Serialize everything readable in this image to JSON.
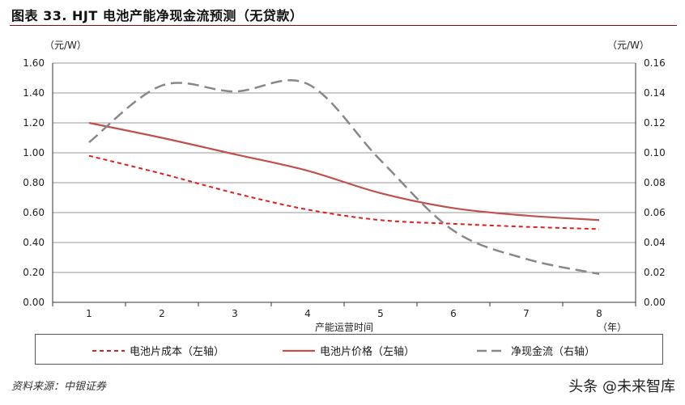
{
  "title": "图表 33. HJT 电池产能净现金流预测（无贷款）",
  "source": "资料来源：中银证券",
  "watermark": "头条 @未来智库",
  "chart_data": {
    "type": "line",
    "xlabel": "产能运营时间",
    "xunit": "（年）",
    "ylabel_left": "（元/W）",
    "ylabel_right": "（元/W）",
    "x": [
      1,
      2,
      3,
      4,
      5,
      6,
      7,
      8
    ],
    "ylim_left": [
      0,
      1.6
    ],
    "yticks_left": [
      "0.00",
      "0.20",
      "0.40",
      "0.60",
      "0.80",
      "1.00",
      "1.20",
      "1.40",
      "1.60"
    ],
    "ylim_right": [
      0,
      0.16
    ],
    "yticks_right": [
      "0.00",
      "0.02",
      "0.04",
      "0.06",
      "0.08",
      "0.10",
      "0.12",
      "0.14",
      "0.16"
    ],
    "grid": true,
    "legend_position": "bottom",
    "series": [
      {
        "name": "电池片成本（左轴）",
        "axis": "left",
        "style": "dotted",
        "color": "#e01e1e",
        "values": [
          0.98,
          0.86,
          0.73,
          0.62,
          0.55,
          0.525,
          0.505,
          0.49
        ]
      },
      {
        "name": "电池片价格（左轴）",
        "axis": "left",
        "style": "solid",
        "color": "#c0504d",
        "values": [
          1.2,
          1.1,
          0.99,
          0.88,
          0.73,
          0.63,
          0.58,
          0.55
        ]
      },
      {
        "name": "净现金流（右轴）",
        "axis": "right",
        "style": "dashed",
        "color": "#888888",
        "values": [
          0.107,
          0.145,
          0.141,
          0.146,
          0.095,
          0.048,
          0.029,
          0.019
        ]
      }
    ]
  }
}
